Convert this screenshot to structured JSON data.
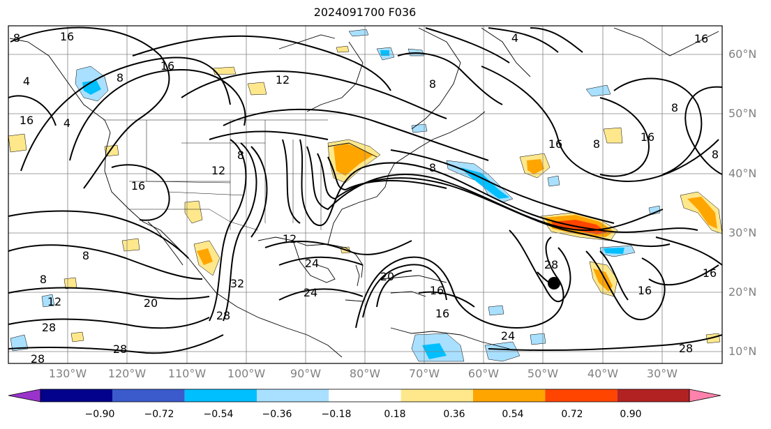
{
  "title": "2024091700 F036",
  "lat_labels": [
    "60°N",
    "50°N",
    "40°N",
    "30°N",
    "20°N",
    "10°N"
  ],
  "lon_labels": [
    "130°W",
    "120°W",
    "110°W",
    "100°W",
    "90°W",
    "80°W",
    "70°W",
    "60°W",
    "50°W",
    "40°W",
    "30°W"
  ],
  "colorbar": {
    "tick_labels": [
      "−0.90",
      "−0.72",
      "−0.54",
      "−0.36",
      "−0.18",
      "0.18",
      "0.36",
      "0.54",
      "0.72",
      "0.90"
    ],
    "colors": [
      "#9a33cc",
      "#02028c",
      "#3b5bcc",
      "#00bfff",
      "#a9e0ff",
      "#ffffff",
      "#ffe88c",
      "#ffa500",
      "#ff4500",
      "#b22222",
      "#ff82ac"
    ]
  },
  "contour_labels": [
    {
      "text": "8"
    },
    {
      "text": "16"
    },
    {
      "text": "8"
    },
    {
      "text": "4"
    },
    {
      "text": "16"
    },
    {
      "text": "12"
    },
    {
      "text": "16"
    },
    {
      "text": "8"
    },
    {
      "text": "12"
    },
    {
      "text": "4"
    },
    {
      "text": "8"
    },
    {
      "text": "4"
    },
    {
      "text": "8"
    },
    {
      "text": "16"
    },
    {
      "text": "8"
    },
    {
      "text": "8"
    },
    {
      "text": "16"
    },
    {
      "text": "8"
    },
    {
      "text": "8"
    },
    {
      "text": "8"
    },
    {
      "text": "12"
    },
    {
      "text": "20"
    },
    {
      "text": "28"
    },
    {
      "text": "28"
    },
    {
      "text": "28"
    },
    {
      "text": "32"
    },
    {
      "text": "28"
    },
    {
      "text": "24"
    },
    {
      "text": "24"
    },
    {
      "text": "20"
    },
    {
      "text": "16"
    },
    {
      "text": "16"
    },
    {
      "text": "24"
    },
    {
      "text": "28"
    },
    {
      "text": "16"
    },
    {
      "text": "16"
    },
    {
      "text": "28"
    },
    {
      "text": "16"
    },
    {
      "text": "12"
    },
    {
      "text": "16"
    }
  ],
  "storm_marker": {
    "lat": 21.5,
    "lon": -48.5
  }
}
